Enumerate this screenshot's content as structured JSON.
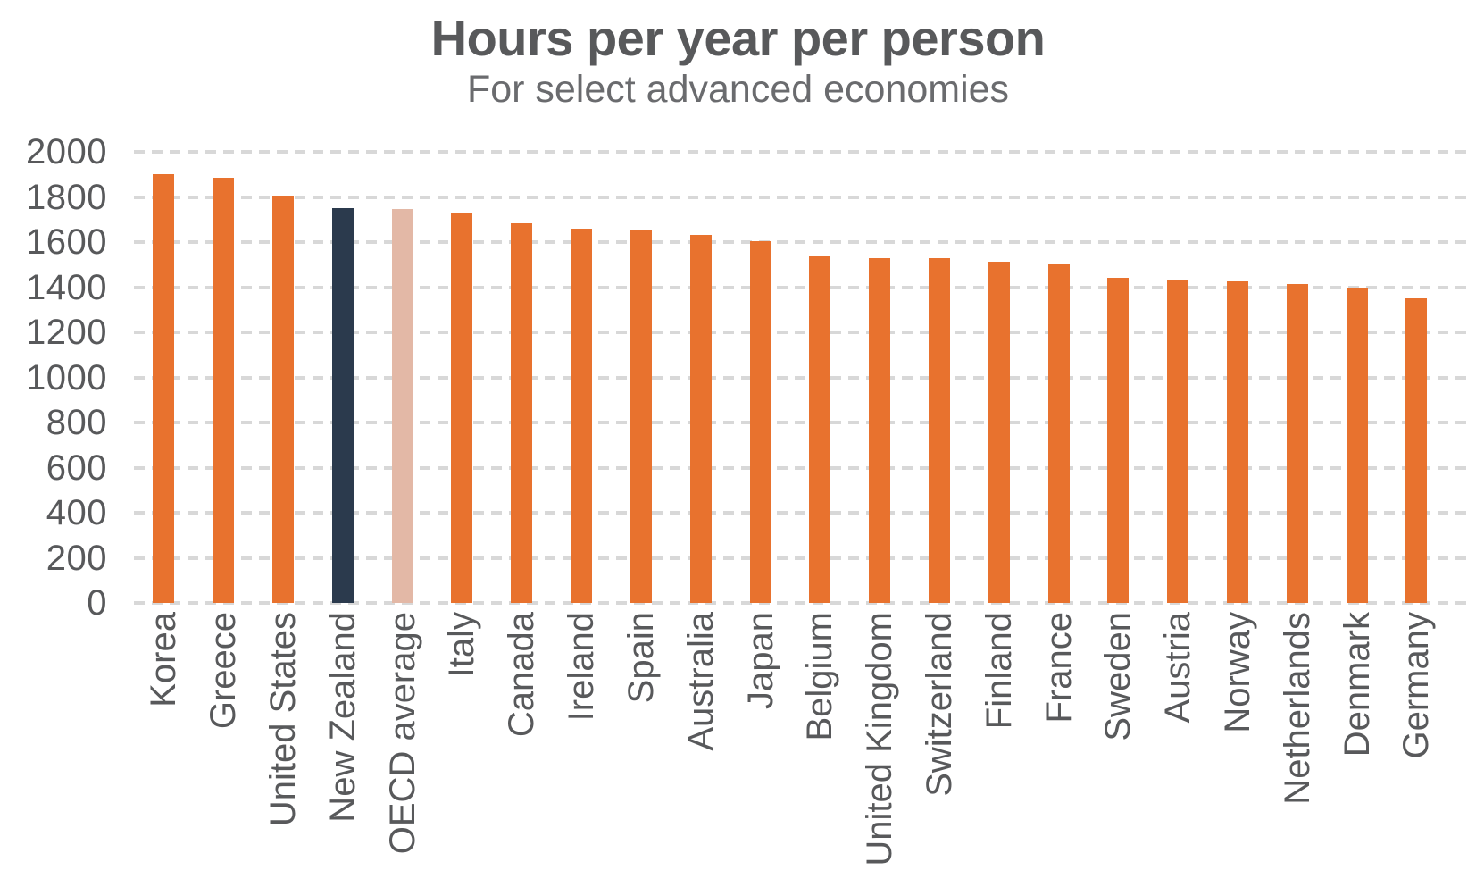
{
  "chart_data": {
    "type": "bar",
    "title": "Hours per year per person",
    "subtitle": "For select advanced economies",
    "xlabel": "",
    "ylabel": "",
    "categories": [
      "Korea",
      "Greece",
      "United States",
      "New Zealand",
      "OECD average",
      "Italy",
      "Canada",
      "Ireland",
      "Spain",
      "Australia",
      "Japan",
      "Belgium",
      "United Kingdom",
      "Switzerland",
      "Finland",
      "France",
      "Sweden",
      "Austria",
      "Norway",
      "Netherlands",
      "Denmark",
      "Germany"
    ],
    "values": [
      1900,
      1885,
      1805,
      1750,
      1745,
      1725,
      1685,
      1660,
      1655,
      1630,
      1605,
      1535,
      1530,
      1530,
      1515,
      1500,
      1440,
      1435,
      1425,
      1415,
      1400,
      1350
    ],
    "ylim": [
      0,
      2000
    ],
    "yticks": [
      0,
      200,
      400,
      600,
      800,
      1000,
      1200,
      1400,
      1600,
      1800,
      2000
    ],
    "grid": "horizontal-dashed",
    "legend": "none",
    "bar_orientation": "vertical",
    "x_tick_label_rotation": -90,
    "default_bar_color": "#E8722E",
    "highlight_colors": {
      "New Zealand": "#2B3A4D",
      "OECD average": "#E3B8A6"
    },
    "colors": {
      "title_text": "#58595B",
      "subtitle_text": "#6A6B6E",
      "axis_text": "#58595B",
      "gridline": "#D8D8D8",
      "background": "#FFFFFF"
    }
  }
}
